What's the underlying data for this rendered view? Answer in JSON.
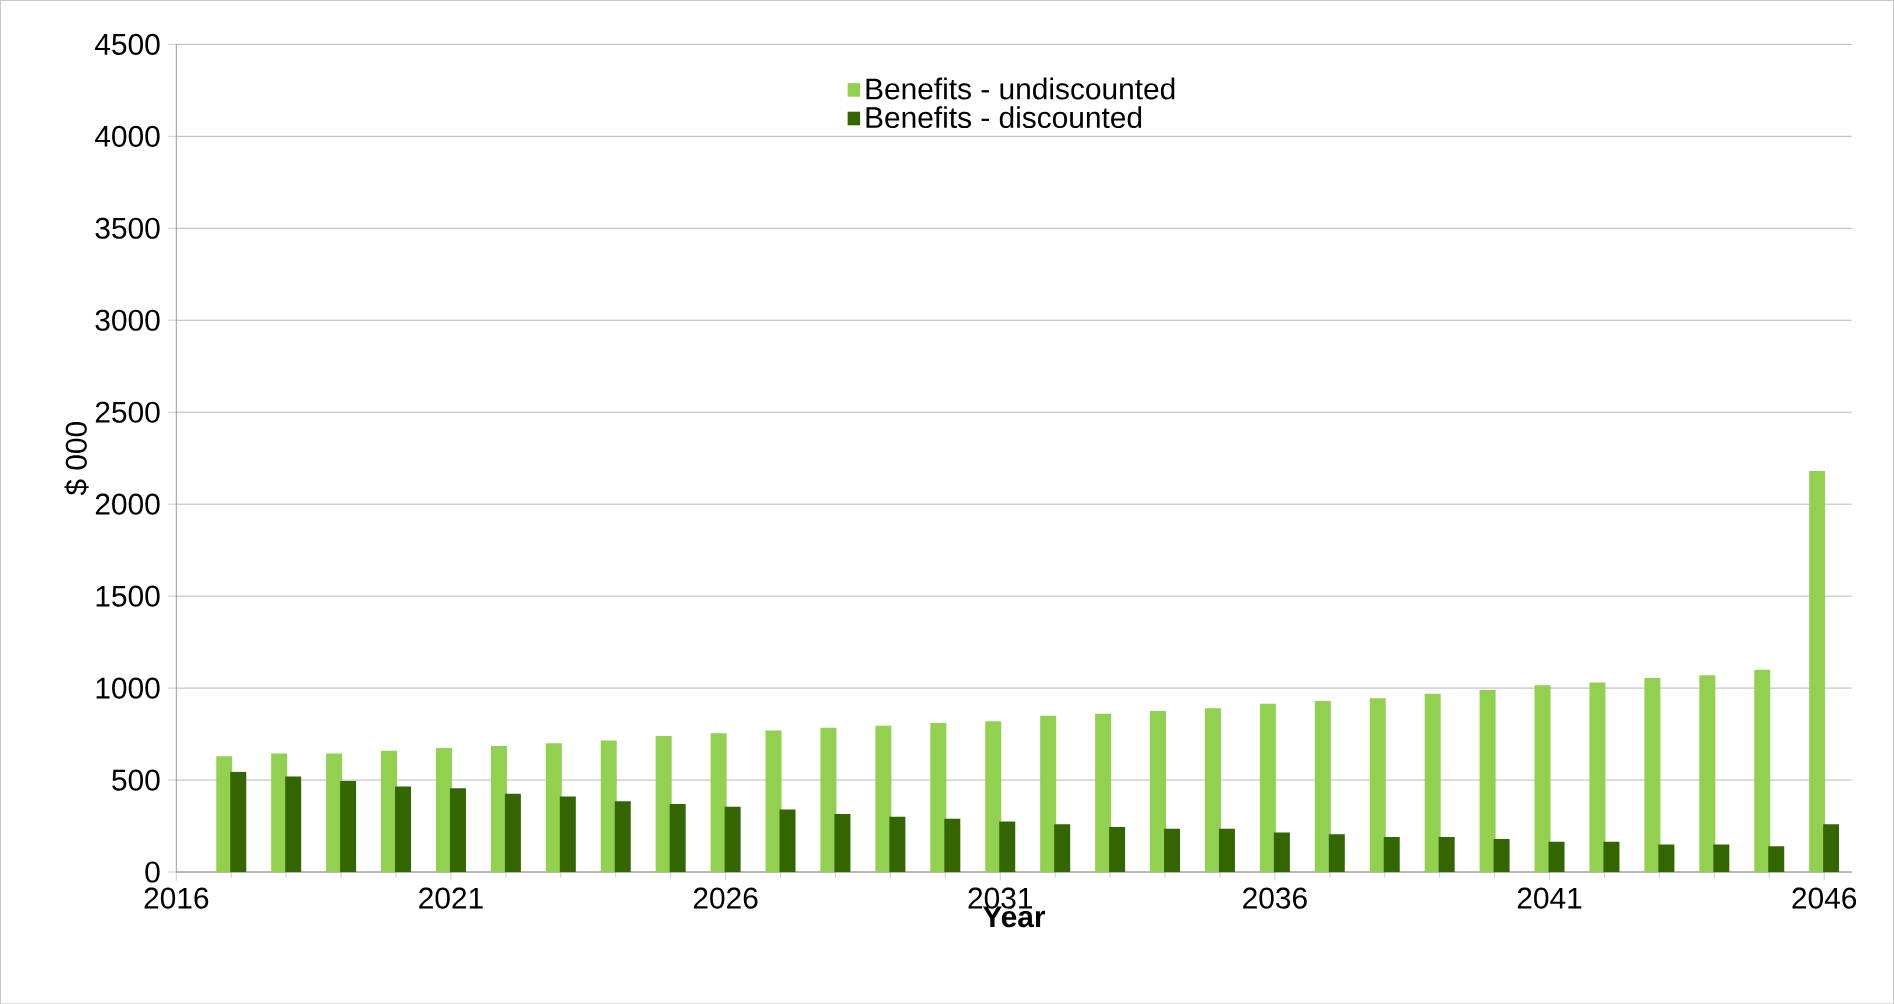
{
  "chart_data": {
    "type": "bar",
    "xlabel": "Year",
    "ylabel": "$ 000",
    "x": [
      2017,
      2018,
      2019,
      2020,
      2021,
      2022,
      2023,
      2024,
      2025,
      2026,
      2027,
      2028,
      2029,
      2030,
      2031,
      2032,
      2033,
      2034,
      2035,
      2036,
      2037,
      2038,
      2039,
      2040,
      2041,
      2042,
      2043,
      2044,
      2045,
      2046
    ],
    "series": [
      {
        "name": "Benefits - undiscounted",
        "color": "#92d050",
        "values": [
          630,
          645,
          645,
          660,
          675,
          685,
          700,
          715,
          740,
          755,
          770,
          785,
          795,
          810,
          820,
          850,
          860,
          875,
          890,
          915,
          930,
          945,
          970,
          990,
          1015,
          1030,
          1055,
          1070,
          1100,
          2180
        ]
      },
      {
        "name": "Benefits - discounted",
        "color": "#336600",
        "values": [
          545,
          520,
          495,
          465,
          455,
          425,
          410,
          385,
          370,
          355,
          340,
          315,
          300,
          290,
          275,
          260,
          245,
          235,
          235,
          215,
          205,
          190,
          190,
          180,
          165,
          165,
          150,
          150,
          140,
          260
        ]
      }
    ],
    "xlim": [
      2016,
      2046.5
    ],
    "xticks": [
      2016,
      2021,
      2026,
      2031,
      2036,
      2041,
      2046
    ],
    "ylim": [
      0,
      4500
    ],
    "yticks": [
      0,
      500,
      1000,
      1500,
      2000,
      2500,
      3000,
      3500,
      4000,
      4500
    ],
    "grid": "y",
    "legend": "top"
  }
}
